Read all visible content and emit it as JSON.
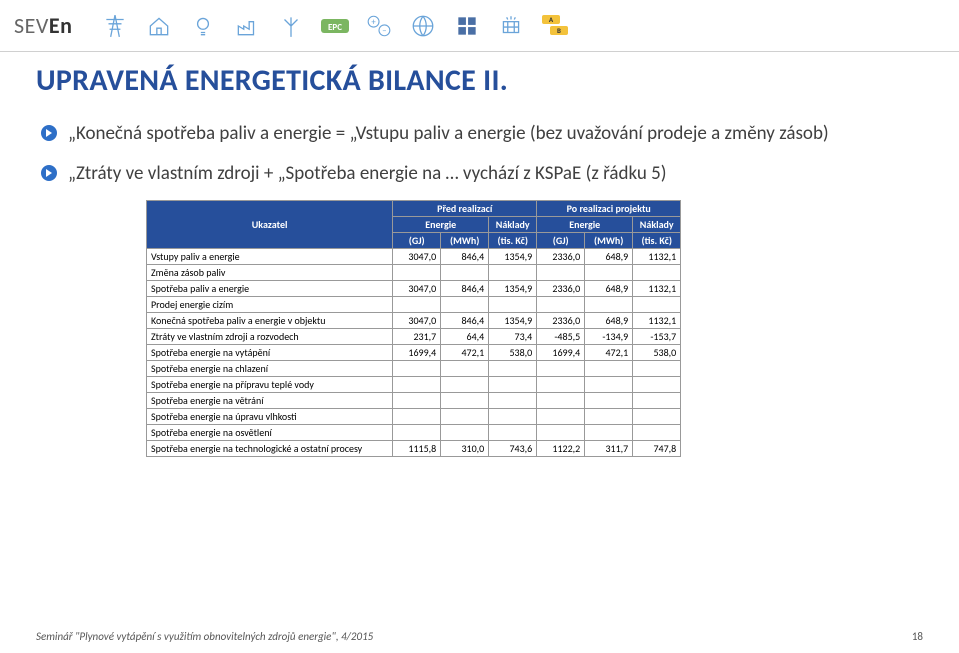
{
  "logo_text": "SEVEn",
  "title": "UPRAVENÁ ENERGETICKÁ BILANCE II.",
  "bullets": [
    "„Konečná spotřeba paliv a energie = „Vstupu paliv a energie (bez uvažování prodeje a změny zásob)",
    "„Ztráty ve vlastním zdroji + „Spotřeba energie na … vychází z KSPaE (z řádku 5)"
  ],
  "table": {
    "header_style": {
      "bg": "#264f9b",
      "fg": "#ffffff"
    },
    "col_group_top": [
      "Ukazatel",
      "Před realizací",
      "Po realizaci projektu"
    ],
    "col_group_mid": [
      "Energie",
      "Náklady",
      "Energie",
      "Náklady"
    ],
    "col_units": [
      "(GJ)",
      "(MWh)",
      "(tis. Kč)",
      "(GJ)",
      "(MWh)",
      "(tis. Kč)"
    ],
    "rows": [
      {
        "label": "Vstupy paliv a energie",
        "v": [
          "3047,0",
          "846,4",
          "1354,9",
          "2336,0",
          "648,9",
          "1132,1"
        ]
      },
      {
        "label": "Změna zásob paliv",
        "v": [
          "",
          "",
          "",
          "",
          "",
          ""
        ]
      },
      {
        "label": "Spotřeba paliv a energie",
        "v": [
          "3047,0",
          "846,4",
          "1354,9",
          "2336,0",
          "648,9",
          "1132,1"
        ]
      },
      {
        "label": "Prodej energie cizím",
        "v": [
          "",
          "",
          "",
          "",
          "",
          ""
        ]
      },
      {
        "label": "Konečná spotřeba paliv a energie v objektu",
        "v": [
          "3047,0",
          "846,4",
          "1354,9",
          "2336,0",
          "648,9",
          "1132,1"
        ]
      },
      {
        "label": "Ztráty ve vlastním zdroji a rozvodech",
        "v": [
          "231,7",
          "64,4",
          "73,4",
          "-485,5",
          "-134,9",
          "-153,7"
        ]
      },
      {
        "label": "Spotřeba energie na vytápění",
        "v": [
          "1699,4",
          "472,1",
          "538,0",
          "1699,4",
          "472,1",
          "538,0"
        ]
      },
      {
        "label": "Spotřeba energie na chlazení",
        "v": [
          "",
          "",
          "",
          "",
          "",
          ""
        ]
      },
      {
        "label": "Spotřeba energie na přípravu teplé vody",
        "v": [
          "",
          "",
          "",
          "",
          "",
          ""
        ]
      },
      {
        "label": "Spotřeba energie na větrání",
        "v": [
          "",
          "",
          "",
          "",
          "",
          ""
        ]
      },
      {
        "label": "Spotřeba energie na úpravu vlhkosti",
        "v": [
          "",
          "",
          "",
          "",
          "",
          ""
        ]
      },
      {
        "label": "Spotřeba energie na osvětlení",
        "v": [
          "",
          "",
          "",
          "",
          "",
          ""
        ]
      },
      {
        "label": "Spotřeba energie na technologické a ostatní procesy",
        "v": [
          "1115,8",
          "310,0",
          "743,6",
          "1122,2",
          "311,7",
          "747,8"
        ]
      }
    ]
  },
  "footer_text": "Seminář \"Plynové vytápění s využitím obnovitelných zdrojů energie\", 4/2015",
  "page_number": "18",
  "icon_colors": {
    "stroke": "#6aa4d9",
    "green": "#7bb661",
    "dark": "#4a6fa5"
  }
}
